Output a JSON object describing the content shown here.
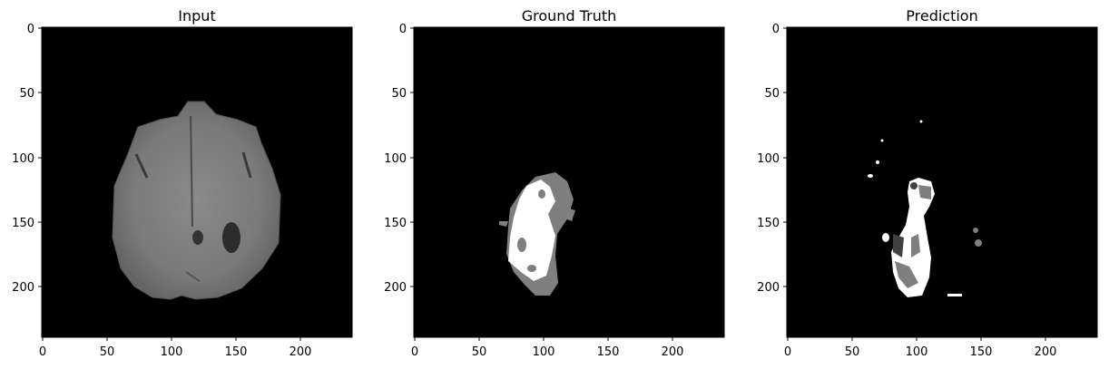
{
  "panels": [
    {
      "title": "Input"
    },
    {
      "title": "Ground Truth"
    },
    {
      "title": "Prediction"
    }
  ],
  "axis": {
    "x_ticks": [
      "0",
      "50",
      "100",
      "150",
      "200"
    ],
    "y_ticks": [
      "0",
      "50",
      "100",
      "150",
      "200"
    ]
  },
  "colors": {
    "background": "#000000",
    "brain": "#7d7d7d",
    "label_gray": "#7f7f7f",
    "label_dark": "#404040",
    "label_white": "#ffffff"
  }
}
